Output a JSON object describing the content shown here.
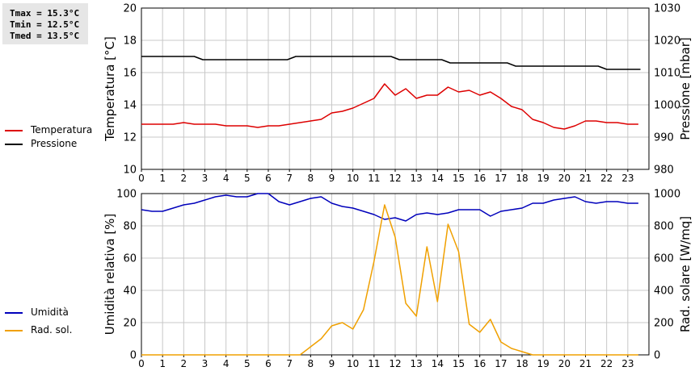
{
  "stats": {
    "tmax": "Tmax = 15.3°C",
    "tmin": "Tmin = 12.5°C",
    "tmed": "Tmed = 13.5°C"
  },
  "colors": {
    "temperature": "#dd0000",
    "pressure": "#000000",
    "humidity": "#0000bb",
    "solar": "#f0a000",
    "grid": "#c8c8c8"
  },
  "chart_data": [
    {
      "type": "line",
      "xlabel": "",
      "xlim": [
        0,
        24
      ],
      "x_ticks": [
        "0",
        "1",
        "2",
        "3",
        "4",
        "5",
        "6",
        "7",
        "8",
        "9",
        "10",
        "11",
        "12",
        "13",
        "14",
        "15",
        "16",
        "17",
        "18",
        "19",
        "20",
        "21",
        "22",
        "23"
      ],
      "ylabel": "Temperatura [°C]",
      "ylim": [
        10,
        20
      ],
      "y_ticks": [
        "10",
        "12",
        "14",
        "16",
        "18",
        "20"
      ],
      "y2label": "Pressione [mbar]",
      "y2lim": [
        980,
        1030
      ],
      "y2_ticks": [
        "980",
        "990",
        "1000",
        "1010",
        "1020",
        "1030"
      ],
      "grid": true,
      "legend": [
        "Temperatura",
        "Pressione"
      ],
      "series": [
        {
          "name": "Temperatura",
          "axis": "left",
          "x": [
            0,
            0.5,
            1,
            1.5,
            2,
            2.5,
            3,
            3.5,
            4,
            4.5,
            5,
            5.5,
            6,
            6.5,
            7,
            7.5,
            8,
            8.5,
            9,
            9.5,
            10,
            10.5,
            11,
            11.5,
            12,
            12.5,
            13,
            13.5,
            14,
            14.5,
            15,
            15.5,
            16,
            16.5,
            17,
            17.5,
            18,
            18.5,
            19,
            19.5,
            20,
            20.5,
            21,
            21.5,
            22,
            22.5,
            23,
            23.5
          ],
          "values": [
            12.8,
            12.8,
            12.8,
            12.8,
            12.9,
            12.8,
            12.8,
            12.8,
            12.7,
            12.7,
            12.7,
            12.6,
            12.7,
            12.7,
            12.8,
            12.9,
            13.0,
            13.1,
            13.5,
            13.6,
            13.8,
            14.1,
            14.4,
            15.3,
            14.6,
            15.0,
            14.4,
            14.6,
            14.6,
            15.1,
            14.8,
            14.9,
            14.6,
            14.8,
            14.4,
            13.9,
            13.7,
            13.1,
            12.9,
            12.6,
            12.5,
            12.7,
            13.0,
            13.0,
            12.9,
            12.9,
            12.8,
            12.8
          ]
        },
        {
          "name": "Pressione",
          "axis": "right",
          "x": [
            0,
            2.5,
            2.9,
            6.9,
            7.3,
            11.8,
            12.2,
            14.2,
            14.6,
            17.3,
            17.7,
            21.6,
            22,
            23.6
          ],
          "values": [
            1015,
            1015,
            1014,
            1014,
            1015,
            1015,
            1014,
            1014,
            1013,
            1013,
            1012,
            1012,
            1011,
            1011
          ]
        }
      ]
    },
    {
      "type": "line",
      "xlabel": "",
      "xlim": [
        0,
        24
      ],
      "x_ticks": [
        "0",
        "1",
        "2",
        "3",
        "4",
        "5",
        "6",
        "7",
        "8",
        "9",
        "10",
        "11",
        "12",
        "13",
        "14",
        "15",
        "16",
        "17",
        "18",
        "19",
        "20",
        "21",
        "22",
        "23"
      ],
      "ylabel": "Umidità relativa [%]",
      "ylim": [
        0,
        100
      ],
      "y_ticks": [
        "0",
        "20",
        "40",
        "60",
        "80",
        "100"
      ],
      "y2label": "Rad. solare [W/mq]",
      "y2lim": [
        0,
        1000
      ],
      "y2_ticks": [
        "0",
        "200",
        "400",
        "600",
        "800",
        "1000"
      ],
      "grid": true,
      "legend": [
        "Umidità",
        "Rad. sol."
      ],
      "series": [
        {
          "name": "Umidità",
          "axis": "left",
          "x": [
            0,
            0.5,
            1,
            1.5,
            2,
            2.5,
            3,
            3.5,
            4,
            4.5,
            5,
            5.5,
            6,
            6.5,
            7,
            7.5,
            8,
            8.5,
            9,
            9.5,
            10,
            10.5,
            11,
            11.5,
            12,
            12.5,
            13,
            13.5,
            14,
            14.5,
            15,
            15.5,
            16,
            16.5,
            17,
            17.5,
            18,
            18.5,
            19,
            19.5,
            20,
            20.5,
            21,
            21.5,
            22,
            22.5,
            23,
            23.5
          ],
          "values": [
            90,
            89,
            89,
            91,
            93,
            94,
            96,
            98,
            99,
            98,
            98,
            100,
            100,
            95,
            93,
            95,
            97,
            98,
            94,
            92,
            91,
            89,
            87,
            84,
            85,
            83,
            87,
            88,
            87,
            88,
            90,
            90,
            90,
            86,
            89,
            90,
            91,
            94,
            94,
            96,
            97,
            98,
            95,
            94,
            95,
            95,
            94,
            94
          ]
        },
        {
          "name": "Rad. sol.",
          "axis": "right",
          "x": [
            0,
            7.5,
            8,
            8.5,
            9,
            9.5,
            10,
            10.5,
            11,
            11.5,
            12,
            12.5,
            13,
            13.5,
            14,
            14.5,
            15,
            15.5,
            16,
            16.5,
            17,
            17.5,
            18,
            18.5,
            23.5
          ],
          "values": [
            0,
            0,
            50,
            100,
            180,
            200,
            160,
            280,
            580,
            930,
            730,
            320,
            240,
            670,
            330,
            810,
            640,
            190,
            140,
            220,
            80,
            40,
            20,
            0,
            0
          ]
        }
      ]
    }
  ]
}
